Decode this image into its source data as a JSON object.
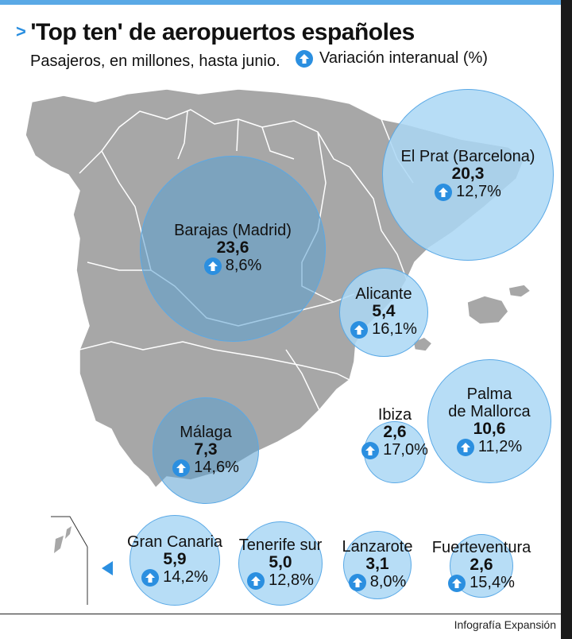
{
  "title": "'Top ten' de aeropuertos españoles",
  "subtitle": "Pasajeros, en millones, hasta junio.",
  "legend": {
    "icon": "up-arrow-icon",
    "label": "Variación interanual (%)"
  },
  "accent_color": "#2b8fe0",
  "airports": [
    {
      "name": "Barajas (Madrid)",
      "value": "23,6",
      "change": "8,6%"
    },
    {
      "name": "El Prat (Barcelona)",
      "value": "20,3",
      "change": "12,7%"
    },
    {
      "name": "Alicante",
      "value": "5,4",
      "change": "16,1%"
    },
    {
      "name_line1": "Palma",
      "name_line2": "de Mallorca",
      "value": "10,6",
      "change": "11,2%"
    },
    {
      "name": "Ibiza",
      "value": "2,6",
      "change": "17,0%"
    },
    {
      "name": "Málaga",
      "value": "7,3",
      "change": "14,6%"
    },
    {
      "name": "Gran Canaria",
      "value": "5,9",
      "change": "14,2%"
    },
    {
      "name": "Tenerife sur",
      "value": "5,0",
      "change": "12,8%"
    },
    {
      "name": "Lanzarote",
      "value": "3,1",
      "change": "8,0%"
    },
    {
      "name": "Fuerteventura",
      "value": "2,6",
      "change": "15,4%"
    }
  ],
  "footer": "Infografía Expansión"
}
